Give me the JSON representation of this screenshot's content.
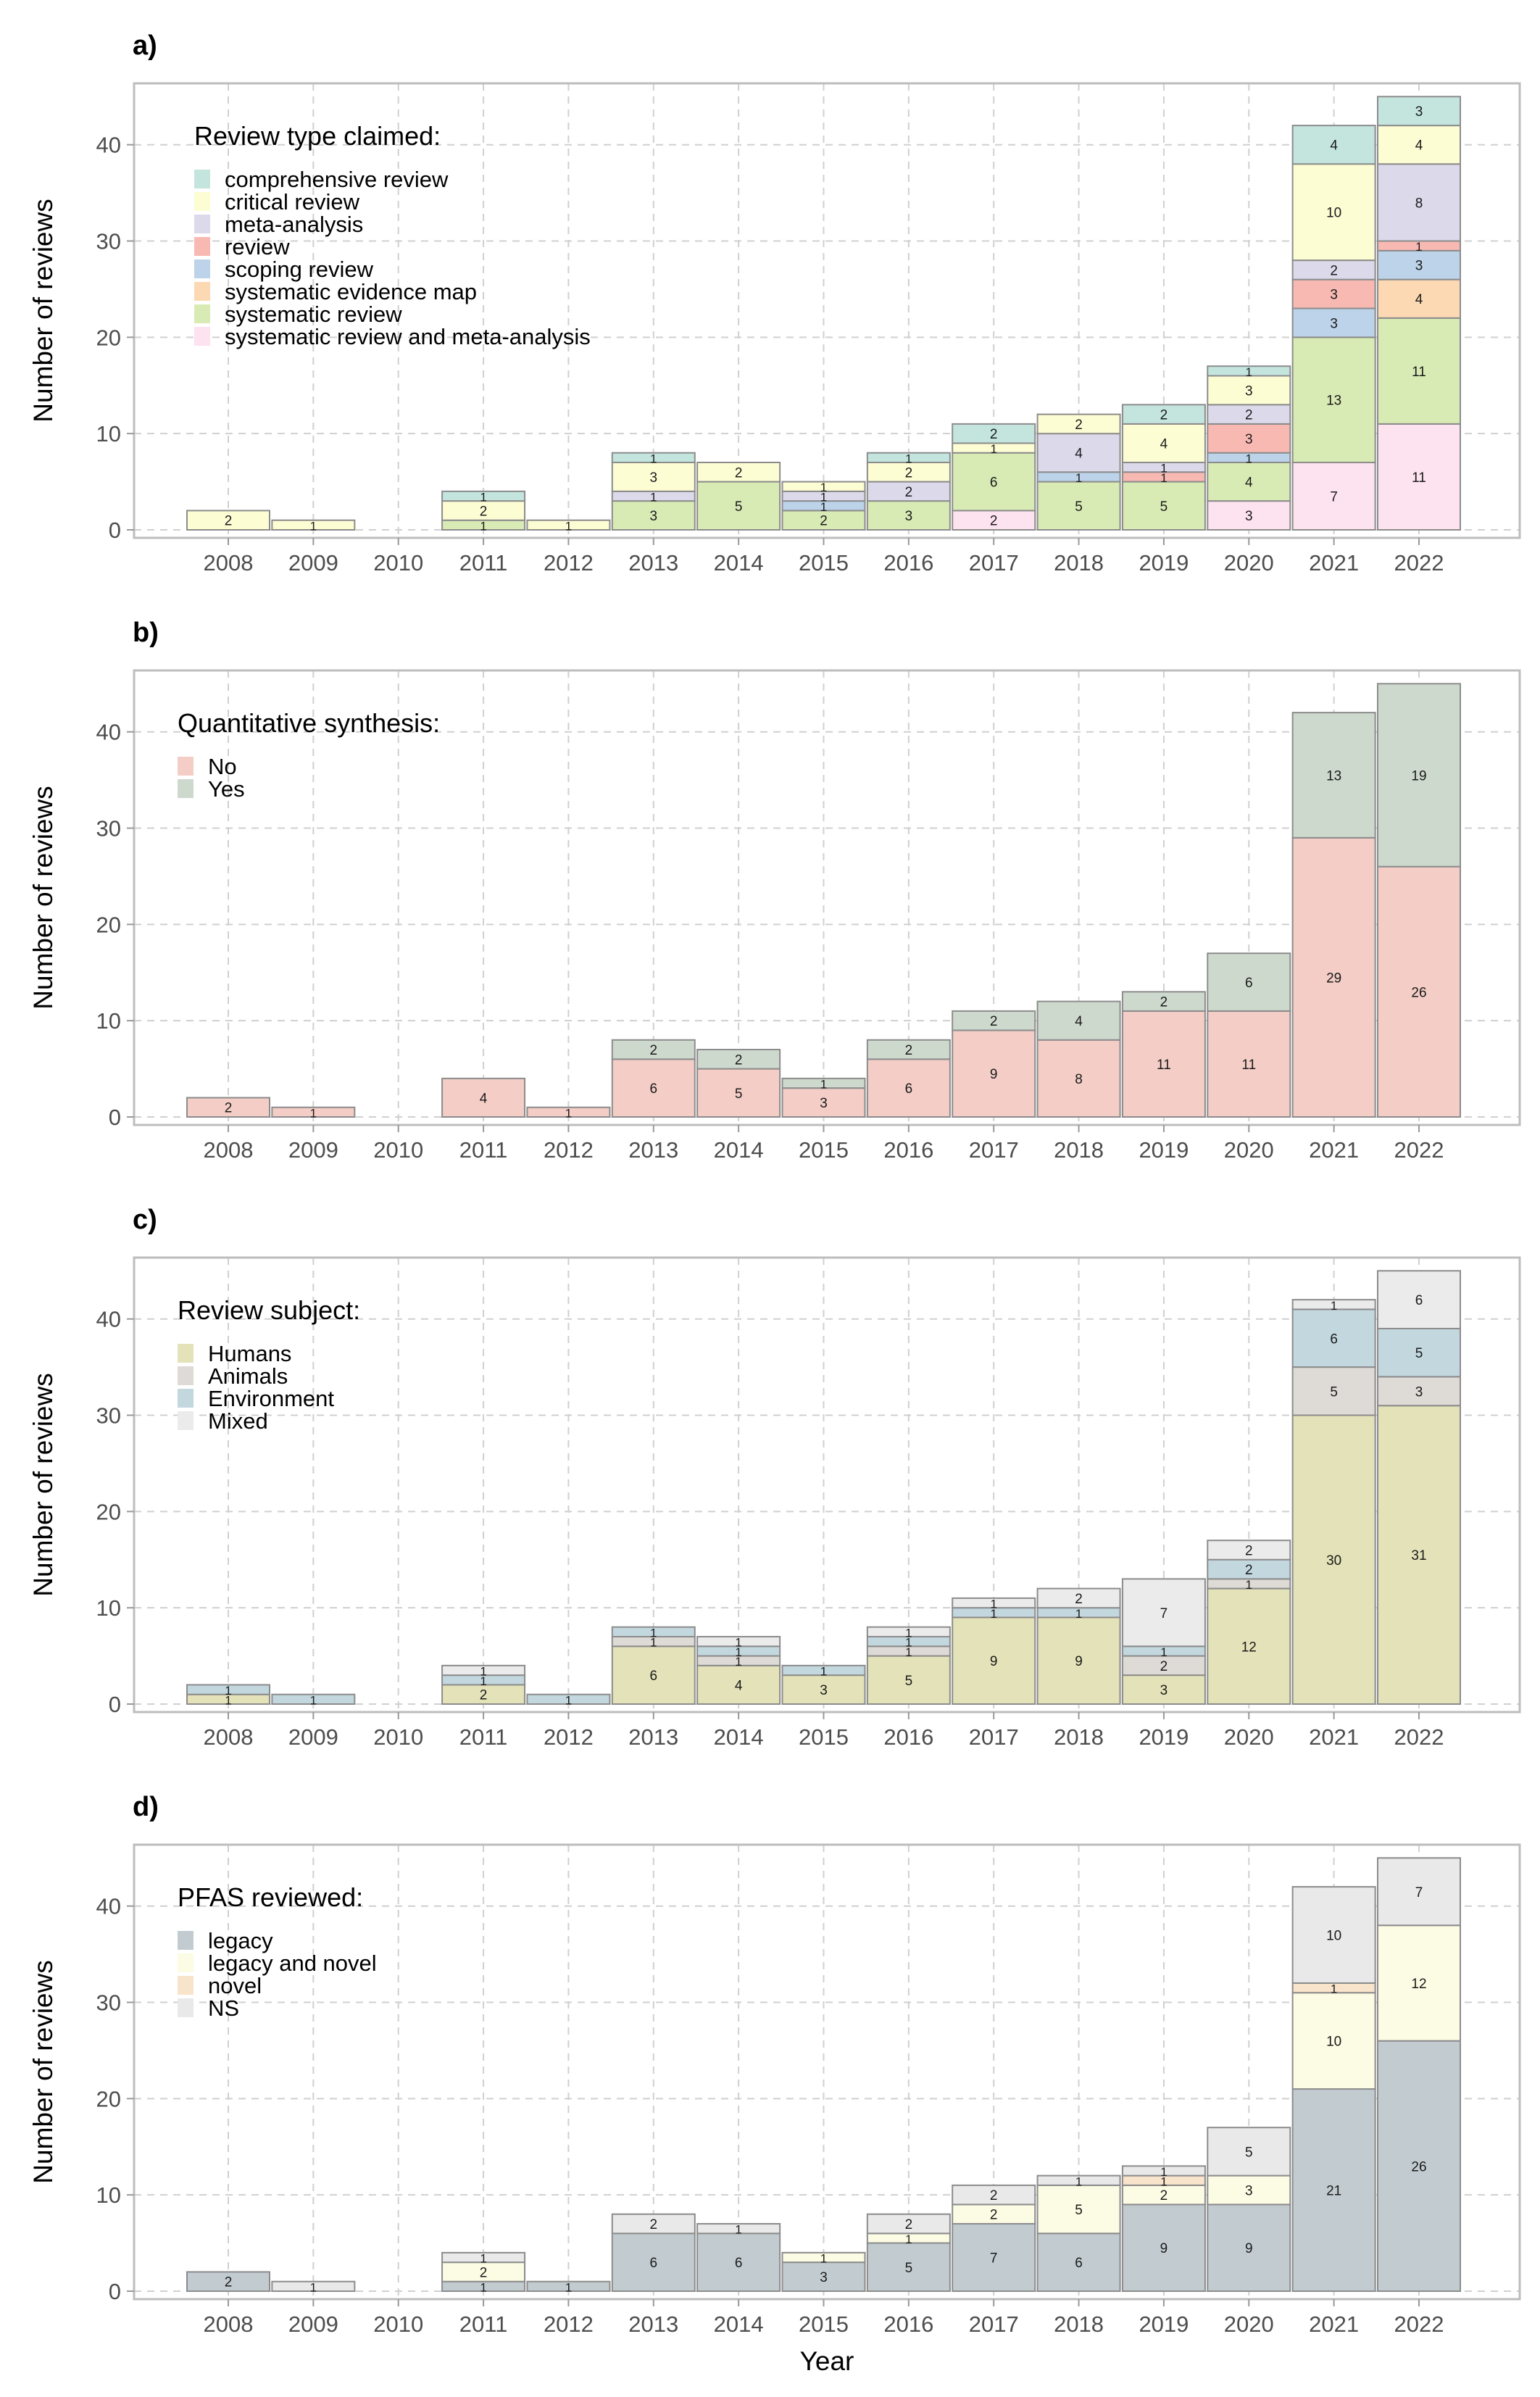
{
  "chart_data": [
    {
      "type": "bar",
      "panel_label": "a)",
      "ylabel": "Number of reviews",
      "xlabel": "",
      "ylim": [
        0,
        46
      ],
      "yticks": [
        0,
        10,
        20,
        30,
        40
      ],
      "grid": true,
      "legend_placement": "top-left",
      "legend_title": "Review type claimed:",
      "categories": [
        "2008",
        "2009",
        "2010",
        "2011",
        "2012",
        "2013",
        "2014",
        "2015",
        "2016",
        "2017",
        "2018",
        "2019",
        "2020",
        "2021",
        "2022"
      ],
      "series": [
        {
          "name": "systematic review and meta-analysis",
          "color": "#fde2ef",
          "values": [
            0,
            0,
            0,
            0,
            0,
            0,
            0,
            0,
            0,
            2,
            0,
            0,
            3,
            7,
            11
          ]
        },
        {
          "name": "systematic review",
          "color": "#d9ebb5",
          "values": [
            0,
            0,
            0,
            1,
            0,
            3,
            5,
            2,
            3,
            6,
            5,
            5,
            4,
            13,
            11
          ]
        },
        {
          "name": "systematic evidence map",
          "color": "#fcd9b3",
          "values": [
            0,
            0,
            0,
            0,
            0,
            0,
            0,
            0,
            0,
            0,
            0,
            0,
            0,
            0,
            4
          ]
        },
        {
          "name": "scoping review",
          "color": "#bcd3e9",
          "values": [
            0,
            0,
            0,
            0,
            0,
            0,
            0,
            1,
            0,
            0,
            1,
            0,
            1,
            3,
            3
          ]
        },
        {
          "name": "review",
          "color": "#f9b9b3",
          "values": [
            0,
            0,
            0,
            0,
            0,
            0,
            0,
            0,
            0,
            0,
            0,
            1,
            3,
            3,
            1
          ]
        },
        {
          "name": "meta-analysis",
          "color": "#dcd9ea",
          "values": [
            0,
            0,
            0,
            0,
            0,
            1,
            0,
            1,
            2,
            0,
            4,
            1,
            2,
            2,
            8
          ]
        },
        {
          "name": "critical review",
          "color": "#fdfdd4",
          "values": [
            2,
            1,
            0,
            2,
            1,
            3,
            2,
            1,
            2,
            1,
            2,
            4,
            3,
            10,
            4
          ]
        },
        {
          "name": "comprehensive review",
          "color": "#c3e5de",
          "values": [
            0,
            0,
            0,
            1,
            0,
            1,
            0,
            0,
            1,
            2,
            0,
            2,
            1,
            4,
            3
          ]
        }
      ]
    },
    {
      "type": "bar",
      "panel_label": "b)",
      "ylabel": "Number of reviews",
      "xlabel": "",
      "ylim": [
        0,
        46
      ],
      "yticks": [
        0,
        10,
        20,
        30,
        40
      ],
      "grid": true,
      "legend_placement": "top-left",
      "legend_title": "Quantitative synthesis:",
      "categories": [
        "2008",
        "2009",
        "2010",
        "2011",
        "2012",
        "2013",
        "2014",
        "2015",
        "2016",
        "2017",
        "2018",
        "2019",
        "2020",
        "2021",
        "2022"
      ],
      "series": [
        {
          "name": "No",
          "color": "#f3cdc6",
          "values": [
            2,
            1,
            0,
            4,
            1,
            6,
            5,
            3,
            6,
            9,
            8,
            11,
            11,
            29,
            26
          ]
        },
        {
          "name": "Yes",
          "color": "#ced9ce",
          "values": [
            0,
            0,
            0,
            0,
            0,
            2,
            2,
            1,
            2,
            2,
            4,
            2,
            6,
            13,
            19
          ]
        }
      ]
    },
    {
      "type": "bar",
      "panel_label": "c)",
      "ylabel": "Number of reviews",
      "xlabel": "",
      "ylim": [
        0,
        46
      ],
      "yticks": [
        0,
        10,
        20,
        30,
        40
      ],
      "grid": true,
      "legend_placement": "top-left",
      "legend_title": "Review subject:",
      "categories": [
        "2008",
        "2009",
        "2010",
        "2011",
        "2012",
        "2013",
        "2014",
        "2015",
        "2016",
        "2017",
        "2018",
        "2019",
        "2020",
        "2021",
        "2022"
      ],
      "series": [
        {
          "name": "Humans",
          "color": "#e3e2b8",
          "values": [
            1,
            0,
            0,
            2,
            0,
            6,
            4,
            3,
            5,
            9,
            9,
            3,
            12,
            30,
            31
          ]
        },
        {
          "name": "Animals",
          "color": "#dedad5",
          "values": [
            0,
            0,
            0,
            0,
            0,
            1,
            1,
            0,
            1,
            0,
            0,
            2,
            1,
            5,
            3
          ]
        },
        {
          "name": "Environment",
          "color": "#c3d7df",
          "values": [
            1,
            1,
            0,
            1,
            1,
            1,
            1,
            1,
            1,
            1,
            1,
            1,
            2,
            6,
            5
          ]
        },
        {
          "name": "Mixed",
          "color": "#ebebeb",
          "values": [
            0,
            0,
            0,
            1,
            0,
            0,
            1,
            0,
            1,
            1,
            2,
            7,
            2,
            1,
            6
          ]
        }
      ]
    },
    {
      "type": "bar",
      "panel_label": "d)",
      "ylabel": "Number of reviews",
      "xlabel": "Year",
      "ylim": [
        0,
        46
      ],
      "yticks": [
        0,
        10,
        20,
        30,
        40
      ],
      "grid": true,
      "legend_placement": "top-left",
      "legend_title": "PFAS reviewed:",
      "categories": [
        "2008",
        "2009",
        "2010",
        "2011",
        "2012",
        "2013",
        "2014",
        "2015",
        "2016",
        "2017",
        "2018",
        "2019",
        "2020",
        "2021",
        "2022"
      ],
      "series": [
        {
          "name": "legacy",
          "color": "#c2ccd0",
          "values": [
            2,
            0,
            0,
            1,
            1,
            6,
            6,
            3,
            5,
            7,
            6,
            9,
            9,
            21,
            26
          ]
        },
        {
          "name": "legacy and novel",
          "color": "#fcfbe3",
          "values": [
            0,
            0,
            0,
            2,
            0,
            0,
            0,
            1,
            1,
            2,
            5,
            2,
            3,
            10,
            12
          ]
        },
        {
          "name": "novel",
          "color": "#f8e3cb",
          "values": [
            0,
            0,
            0,
            0,
            0,
            0,
            0,
            0,
            0,
            0,
            0,
            1,
            0,
            1,
            0
          ]
        },
        {
          "name": "NS",
          "color": "#e9e9ea",
          "values": [
            0,
            1,
            0,
            1,
            0,
            2,
            1,
            0,
            2,
            2,
            1,
            1,
            5,
            10,
            7
          ]
        }
      ]
    }
  ]
}
